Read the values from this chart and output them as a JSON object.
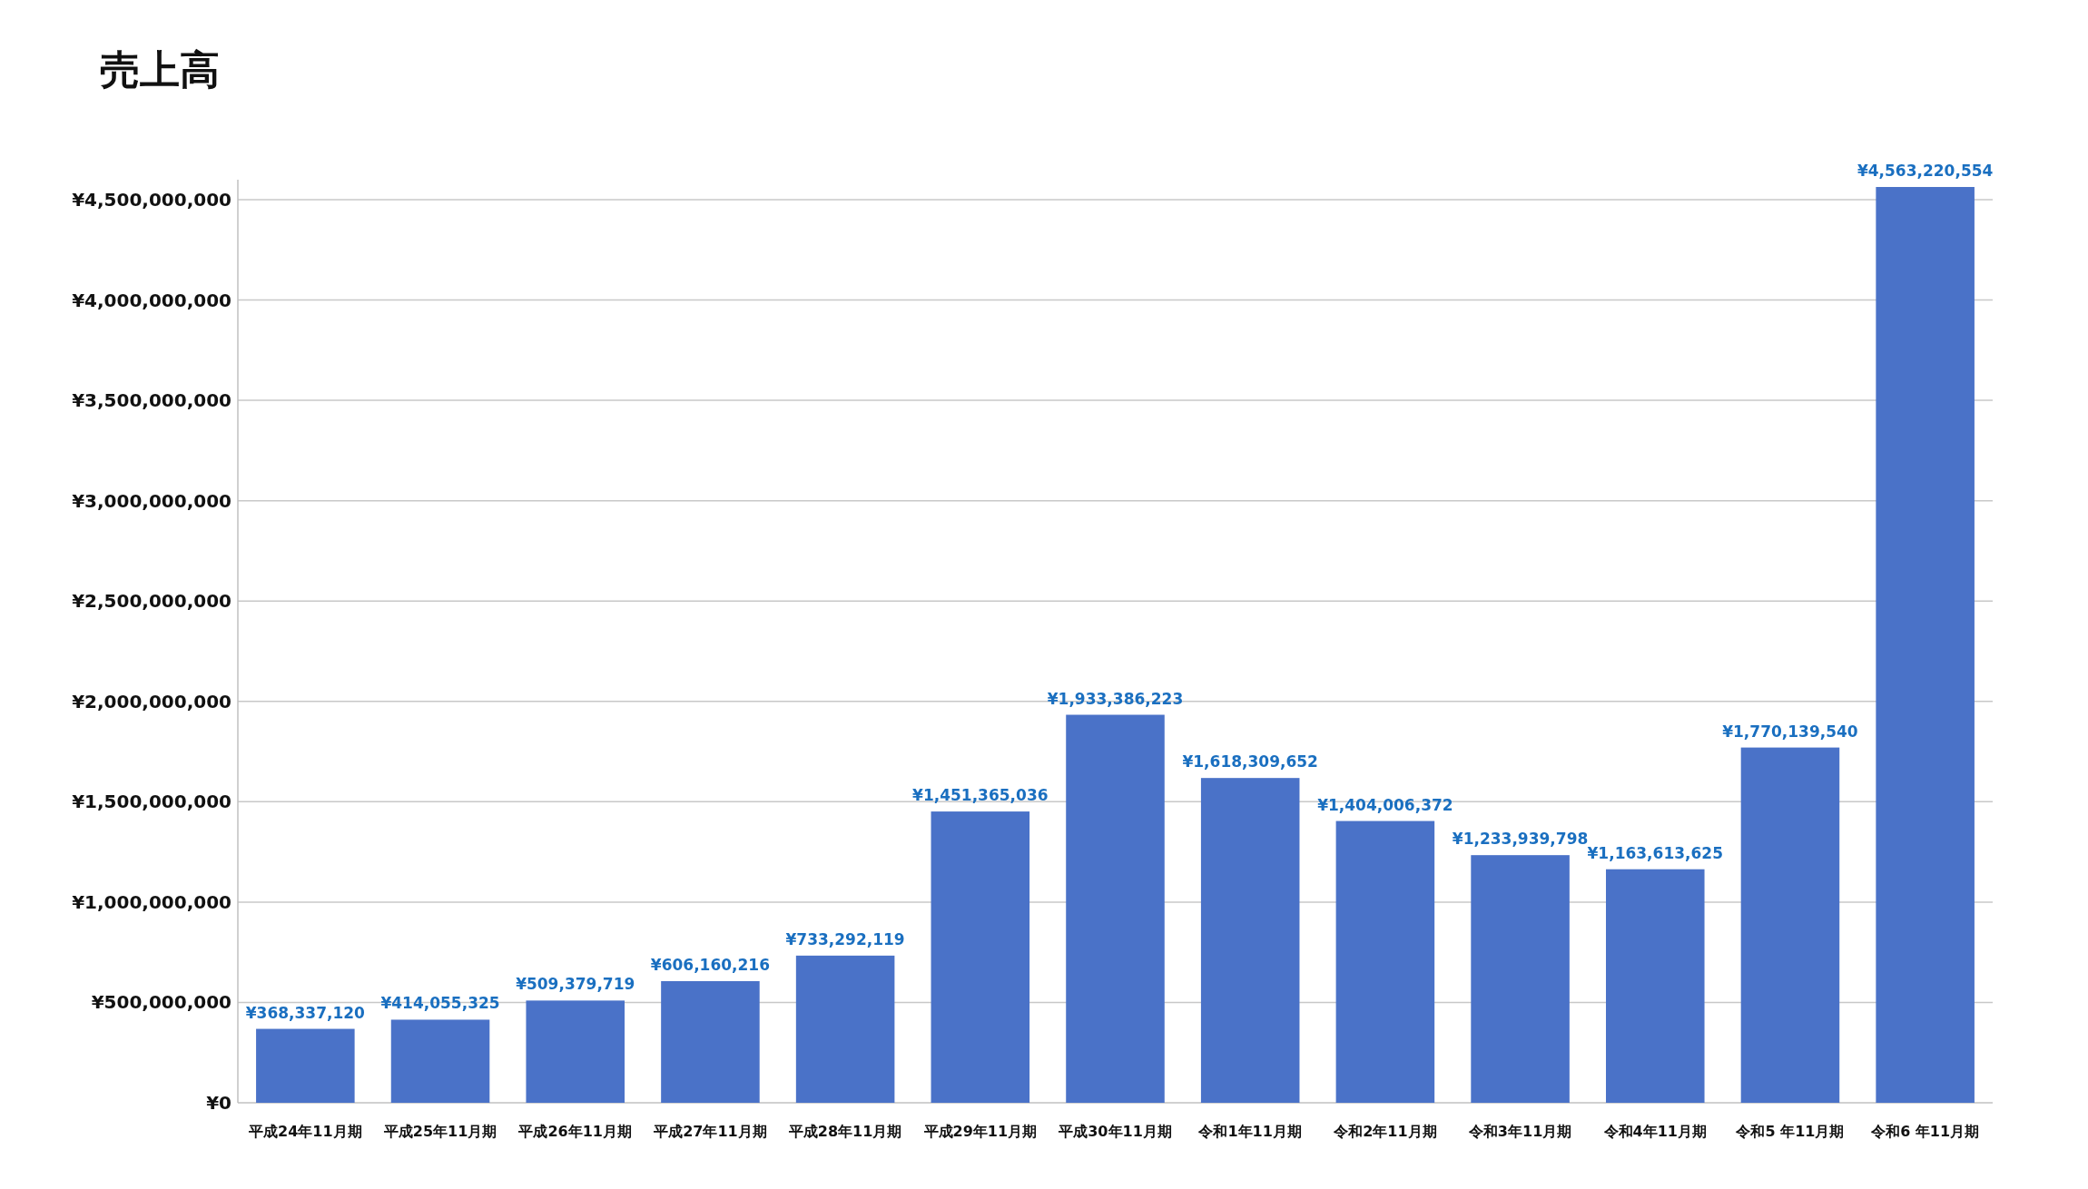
{
  "chart_data": {
    "type": "bar",
    "title": "売上高",
    "categories": [
      "平成24年11月期",
      "平成25年11月期",
      "平成26年11月期",
      "平成27年11月期",
      "平成28年11月期",
      "平成29年11月期",
      "平成30年11月期",
      "令和1年11月期",
      "令和2年11月期",
      "令和3年11月期",
      "令和4年11月期",
      "令和5 年11月期",
      "令和6 年11月期"
    ],
    "values": [
      368337120,
      414055325,
      509379719,
      606160216,
      733292119,
      1451365036,
      1933386223,
      1618309652,
      1404006372,
      1233939798,
      1163613625,
      1770139540,
      4563220554
    ],
    "value_labels": [
      "¥368,337,120",
      "¥414,055,325",
      "¥509,379,719",
      "¥606,160,216",
      "¥733,292,119",
      "¥1,451,365,036",
      "¥1,933,386,223",
      "¥1,618,309,652",
      "¥1,404,006,372",
      "¥1,233,939,798",
      "¥1,163,613,625",
      "¥1,770,139,540",
      "¥4,563,220,554"
    ],
    "color": "#4a72c8",
    "yticks": [
      {
        "value": 0,
        "label": "¥0"
      },
      {
        "value": 500000000,
        "label": "¥500,000,000"
      },
      {
        "value": 1000000000,
        "label": "¥1,000,000,000"
      },
      {
        "value": 1500000000,
        "label": "¥1,500,000,000"
      },
      {
        "value": 2000000000,
        "label": "¥2,000,000,000"
      },
      {
        "value": 2500000000,
        "label": "¥2,500,000,000"
      },
      {
        "value": 3000000000,
        "label": "¥3,000,000,000"
      },
      {
        "value": 3500000000,
        "label": "¥3,500,000,000"
      },
      {
        "value": 4000000000,
        "label": "¥4,000,000,000"
      },
      {
        "value": 4500000000,
        "label": "¥4,500,000,000"
      }
    ],
    "ylim": [
      0,
      4600000000
    ],
    "grid": "y"
  }
}
